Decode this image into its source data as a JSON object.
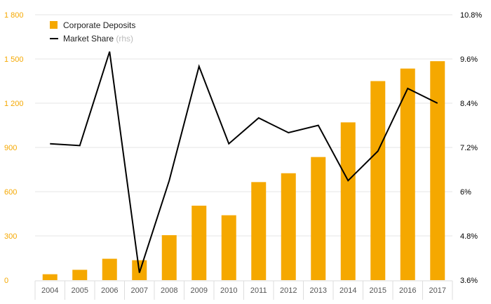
{
  "chart_data": {
    "type": "bar",
    "categories": [
      "2004",
      "2005",
      "2006",
      "2007",
      "2008",
      "2009",
      "2010",
      "2011",
      "2012",
      "2013",
      "2014",
      "2015",
      "2016",
      "2017"
    ],
    "series": [
      {
        "name": "Corporate Deposits",
        "type": "bar",
        "axis": "left",
        "color": "#f5a800",
        "values": [
          40,
          70,
          145,
          135,
          305,
          505,
          440,
          665,
          725,
          835,
          1070,
          1350,
          1435,
          1485
        ]
      },
      {
        "name": "Market Share",
        "note": "(rhs)",
        "type": "line",
        "axis": "right",
        "color": "#000000",
        "values": [
          7.3,
          7.25,
          9.8,
          3.8,
          6.3,
          9.4,
          7.3,
          8.0,
          7.6,
          7.8,
          6.3,
          7.1,
          8.8,
          8.4
        ]
      }
    ],
    "left_axis": {
      "ylim": [
        0,
        1800
      ],
      "ticks": [
        0,
        300,
        600,
        900,
        1200,
        1500,
        1800
      ],
      "tick_labels": [
        "0",
        "300",
        "600",
        "900",
        "1 200",
        "1 500",
        "1 800"
      ]
    },
    "right_axis": {
      "ylim": [
        3.6,
        10.8
      ],
      "ticks": [
        3.6,
        4.8,
        6.0,
        7.2,
        8.4,
        9.6,
        10.8
      ],
      "tick_labels": [
        "3.6%",
        "4.8%",
        "6%",
        "7.2%",
        "8.4%",
        "9.6%",
        "10.8%"
      ]
    },
    "grid": "horizontal",
    "legend_position": "top-left",
    "title": "",
    "xlabel": "",
    "ylabel": ""
  }
}
